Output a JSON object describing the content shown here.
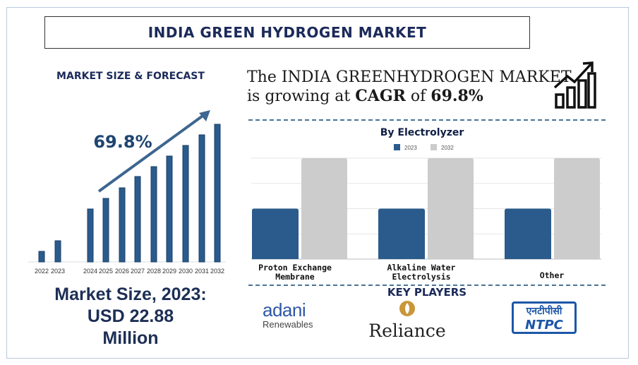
{
  "title": "INDIA GREEN HYDROGEN MARKET",
  "market_size_forecast": "MARKET SIZE & FORECAST",
  "cagr_line1": "The INDIA GREENHYDROGEN MARKET",
  "cagr_line2_prefix": "is growing at",
  "cagr_label": "CAGR",
  "cagr_of": "of",
  "cagr_value": "69.8%",
  "market_size_line1": "Market Size, 2023:",
  "market_size_line2": "USD 22.88",
  "market_size_line3": "Million",
  "key_players_title": "KEY PLAYERS",
  "players": {
    "adani": "adani",
    "adani_sub": "Renewables",
    "reliance": "Reliance",
    "ntpc_hindi": "एनटीपीसी",
    "ntpc": "NTPC"
  },
  "colors": {
    "primary": "#2a5b8c",
    "secondary": "#cccccc",
    "title": "#1b2a5a"
  },
  "chart_data": [
    {
      "type": "bar",
      "categories": [
        "2022",
        "2023",
        "2024",
        "2025",
        "2026",
        "2027",
        "2028",
        "2029",
        "2030",
        "2031",
        "2032"
      ],
      "values": [
        15,
        30,
        75,
        90,
        105,
        121,
        135,
        150,
        165,
        180,
        195
      ],
      "annotation": "69.8%",
      "grid": false
    },
    {
      "type": "bar",
      "title": "By Electrolyzer",
      "categories": [
        "Proton Exchange Membrane",
        "Alkaline Water Electrolysis",
        "Other"
      ],
      "category_lines": [
        [
          "Proton Exchange",
          "Membrane"
        ],
        [
          "Alkaline Water",
          "Electrolysis"
        ],
        [
          "Other"
        ]
      ],
      "series": [
        {
          "name": "2023",
          "values": [
            2,
            2,
            2
          ]
        },
        {
          "name": "2032",
          "values": [
            4,
            4,
            4
          ]
        }
      ],
      "ylim": [
        0,
        4
      ],
      "grid": true,
      "legend": "top"
    }
  ]
}
